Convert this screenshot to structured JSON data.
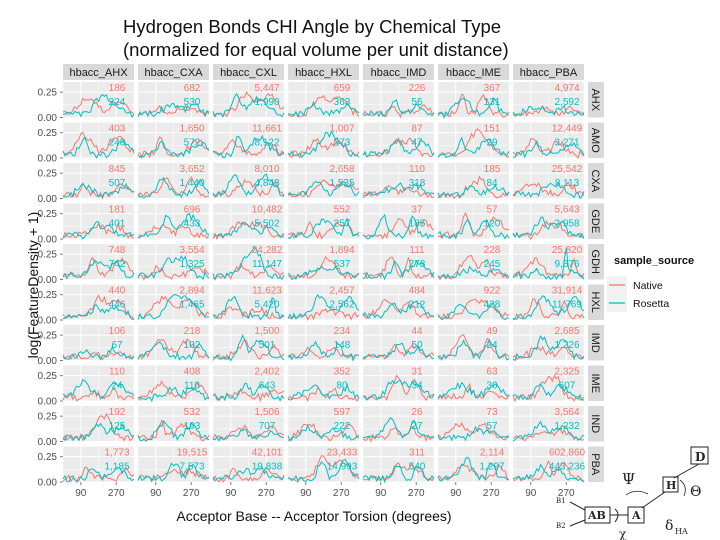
{
  "chart_data": {
    "type": "line",
    "title": "Hydrogen Bonds CHI Angle by Chemical Type",
    "subtitle": "(normalized for equal volume per unit distance)",
    "xlabel": "Acceptor Base -- Acceptor Torsion (degrees)",
    "ylabel": "log(FeatureDensity + 1)",
    "x_ticks": [
      90,
      270
    ],
    "y_ticks": [
      "0.00",
      "0.25"
    ],
    "ylim": [
      0,
      0.35
    ],
    "xlim": [
      0,
      360
    ],
    "grid": true,
    "columns": [
      "hbacc_AHX",
      "hbacc_CXA",
      "hbacc_CXL",
      "hbacc_HXL",
      "hbacc_IMD",
      "hbacc_IME",
      "hbacc_PBA"
    ],
    "rows": [
      "AHX",
      "AMO",
      "CXA",
      "GDE",
      "GDH",
      "HXL",
      "IMD",
      "IME",
      "IND",
      "PBA"
    ],
    "counts": [
      [
        [
          "186",
          "224"
        ],
        [
          "682",
          "530"
        ],
        [
          "5,447",
          "1,990"
        ],
        [
          "659",
          "363"
        ],
        [
          "226",
          "56"
        ],
        [
          "367",
          "131"
        ],
        [
          "4,974",
          "2,592"
        ]
      ],
      [
        [
          "403",
          "248"
        ],
        [
          "1,650",
          "572"
        ],
        [
          "11,661",
          "8,122"
        ],
        [
          "1,007",
          "273"
        ],
        [
          "87",
          "47"
        ],
        [
          "151",
          "29"
        ],
        [
          "12,449",
          "3,271"
        ]
      ],
      [
        [
          "845",
          "507"
        ],
        [
          "3,652",
          "1,440"
        ],
        [
          "8,010",
          "4,848"
        ],
        [
          "2,658",
          "1,535"
        ],
        [
          "110",
          "318"
        ],
        [
          "185",
          "84"
        ],
        [
          "25,542",
          "8,113"
        ]
      ],
      [
        [
          "181",
          "401"
        ],
        [
          "696",
          "433"
        ],
        [
          "10,482",
          "5,502"
        ],
        [
          "552",
          "257"
        ],
        [
          "37",
          "185"
        ],
        [
          "57",
          "120"
        ],
        [
          "5,643",
          "2,958"
        ]
      ],
      [
        [
          "748",
          "742"
        ],
        [
          "3,554",
          "1,325"
        ],
        [
          "24,282",
          "11,147"
        ],
        [
          "1,894",
          "537"
        ],
        [
          "111",
          "278"
        ],
        [
          "228",
          "245"
        ],
        [
          "25,820",
          "9,876"
        ]
      ],
      [
        [
          "440",
          "446"
        ],
        [
          "2,894",
          "1,465"
        ],
        [
          "11,623",
          "5,420"
        ],
        [
          "2,457",
          "2,562"
        ],
        [
          "484",
          "212"
        ],
        [
          "922",
          "428"
        ],
        [
          "31,914",
          "11,769"
        ]
      ],
      [
        [
          "106",
          "67"
        ],
        [
          "218",
          "102"
        ],
        [
          "1,500",
          "501"
        ],
        [
          "234",
          "148"
        ],
        [
          "44",
          "50"
        ],
        [
          "49",
          "24"
        ],
        [
          "2,685",
          "1,226"
        ]
      ],
      [
        [
          "110",
          "24"
        ],
        [
          "408",
          "110"
        ],
        [
          "2,402",
          "643"
        ],
        [
          "352",
          "80"
        ],
        [
          "31",
          "34"
        ],
        [
          "63",
          "30"
        ],
        [
          "2,325",
          "607"
        ]
      ],
      [
        [
          "192",
          "125"
        ],
        [
          "532",
          "193"
        ],
        [
          "1,506",
          "707"
        ],
        [
          "597",
          "222"
        ],
        [
          "26",
          "27"
        ],
        [
          "73",
          "57"
        ],
        [
          "3,564",
          "1,232"
        ]
      ],
      [
        [
          "1,773",
          "1,185"
        ],
        [
          "19,515",
          "7,573"
        ],
        [
          "42,101",
          "19,838"
        ],
        [
          "23,433",
          "14,993"
        ],
        [
          "311",
          "540"
        ],
        [
          "2,114",
          "1,297"
        ],
        [
          "602,860",
          "443,236"
        ]
      ]
    ],
    "legend": {
      "title": "sample_source",
      "position": "right",
      "items": [
        {
          "name": "Native",
          "color": "#F8766D"
        },
        {
          "name": "Rosetta",
          "color": "#00BFC4"
        }
      ]
    },
    "series": [
      {
        "name": "Native",
        "color": "#F8766D"
      },
      {
        "name": "Rosetta",
        "color": "#00BFC4"
      }
    ]
  },
  "diagram": {
    "labels": {
      "D": "D",
      "H": "H",
      "A": "A",
      "AB": "AB",
      "B1": "B1",
      "B2": "B2",
      "psi": "Ψ",
      "theta": "Θ",
      "chi": "χ",
      "delta": "δ",
      "delta_sub": "HA"
    }
  }
}
